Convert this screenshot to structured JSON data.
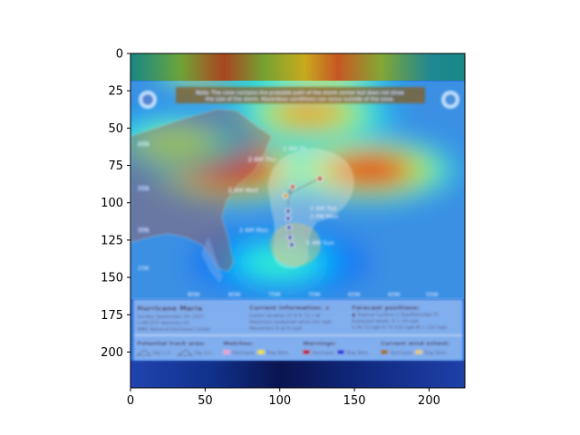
{
  "chart_data": {
    "type": "heatmap",
    "title": "",
    "xlabel": "",
    "ylabel": "",
    "xlim": [
      0,
      224
    ],
    "ylim": [
      224,
      0
    ],
    "xticks": [
      0,
      50,
      100,
      150,
      200
    ],
    "yticks": [
      0,
      25,
      50,
      75,
      100,
      125,
      150,
      175,
      200
    ],
    "colormap": "jet",
    "overlay_alpha": 0.5,
    "background_image": "NHC hurricane forecast cone map (Hurricane Maria)",
    "heat_peaks": [
      {
        "x": 70,
        "y": 78,
        "intensity": 0.95
      },
      {
        "x": 160,
        "y": 78,
        "intensity": 0.9
      },
      {
        "x": 120,
        "y": 40,
        "intensity": 0.75
      },
      {
        "x": 70,
        "y": 5,
        "intensity": 0.95
      },
      {
        "x": 105,
        "y": 5,
        "intensity": 0.6
      },
      {
        "x": 130,
        "y": 5,
        "intensity": 0.7
      },
      {
        "x": 30,
        "y": 60,
        "intensity": 0.55
      },
      {
        "x": 100,
        "y": 140,
        "intensity": 0.45
      }
    ]
  },
  "map": {
    "note_line1": "Note: The cone contains the probable path of the storm center but does not show",
    "note_line2": "the size of the storm. Hazardous conditions can occur outside of the cone.",
    "forecast_labels": [
      "2 AM Fri",
      "2 AM Thu",
      "2 AM Wed",
      "2 AM Tue",
      "2 PM Mon",
      "2 AM Mon",
      "5 AM Sun"
    ],
    "lat_labels": [
      "40N",
      "35N",
      "30N",
      "25N"
    ],
    "lon_labels": [
      "80W",
      "80W",
      "75W",
      "70W",
      "65W",
      "60W",
      "55W"
    ],
    "storm_name": "Hurricane Maria",
    "storm_date": "Sunday September 24, 2017",
    "storm_advisory": "5 AM EDT Advisory 33",
    "storm_center": "NWS National Hurricane Center",
    "current_info_title": "Current information: x",
    "current_center": "Center location 27.8 N 72.7 W",
    "current_wind": "Maximum sustained wind 110 mph",
    "current_movement": "Movement N at 9 mph",
    "forecast_title": "Forecast positions:",
    "forecast_legend": "● Tropical Cyclone  ○ Post/Potential TC",
    "forecast_wind": "Sustained winds:    D < 39 mph",
    "forecast_wind2": "S 39-73 mph   H 74-110 mph   M > 110 mph",
    "track_area_title": "Potential track area:",
    "track_day1": "Day 1-3",
    "track_day4": "Day 4-5",
    "watches_title": "Watches:",
    "watch_hurricane": "Hurricane",
    "watch_trop": "Trop Strm",
    "warnings_title": "Warnings:",
    "warn_hurricane": "Hurricane",
    "warn_trop": "Trop Strm",
    "wind_extent_title": "Current wind extent:",
    "wind_hurricane": "Hurricane",
    "wind_trop": "Trop Strm"
  }
}
